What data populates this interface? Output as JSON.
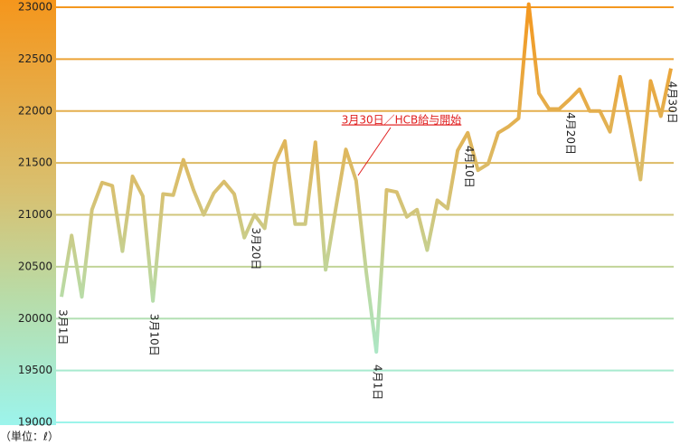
{
  "chart_data": {
    "type": "line",
    "x": [
      "3月1日",
      null,
      null,
      null,
      null,
      null,
      null,
      null,
      null,
      "3月10日",
      null,
      null,
      null,
      null,
      null,
      null,
      null,
      null,
      null,
      "3月20日",
      null,
      null,
      null,
      null,
      null,
      null,
      null,
      null,
      null,
      null,
      null,
      "4月1日",
      null,
      null,
      null,
      null,
      null,
      null,
      null,
      null,
      "4月10日",
      null,
      null,
      null,
      null,
      null,
      null,
      null,
      null,
      null,
      "4月20日",
      null,
      null,
      null,
      null,
      null,
      null,
      null,
      null,
      null,
      "4月30日"
    ],
    "series": [
      {
        "values": [
          20210,
          20800,
          20210,
          21050,
          21310,
          21280,
          20650,
          21370,
          21180,
          20170,
          21200,
          21190,
          21530,
          21240,
          21000,
          21210,
          21320,
          21200,
          20780,
          21000,
          20870,
          21500,
          21710,
          20910,
          20910,
          21700,
          20470,
          21060,
          21630,
          21330,
          20450,
          19680,
          21240,
          21220,
          20980,
          21050,
          20660,
          21140,
          21060,
          21620,
          21790,
          21430,
          21490,
          21790,
          21850,
          21930,
          23030,
          22170,
          22020,
          22020,
          22110,
          22210,
          22000,
          22000,
          21800,
          22330,
          21850,
          21340,
          22290,
          21950,
          22410
        ]
      }
    ],
    "ylim": [
      19000,
      23000
    ],
    "yticks": [
      19000,
      19500,
      20000,
      20500,
      21000,
      21500,
      22000,
      22500,
      23000
    ],
    "grid": true,
    "annotation": "3月30日／HCB給与開始",
    "unit_note": "（単位：ℓ）"
  }
}
